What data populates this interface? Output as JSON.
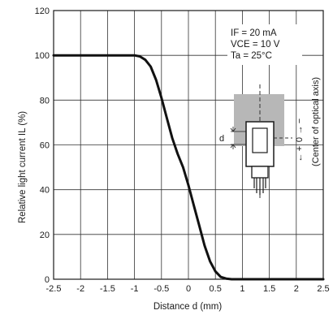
{
  "chart_data": {
    "type": "line",
    "xlabel": "Distance d (mm)",
    "ylabel": "Relative light current IL (%)",
    "xlim": [
      -2.5,
      2.5
    ],
    "ylim": [
      0,
      120
    ],
    "x_ticks": [
      "-2.5",
      "-2",
      "-1.5",
      "-1",
      "-0.5",
      "0",
      "0.5",
      "1",
      "1.5",
      "2",
      "2.5"
    ],
    "y_ticks": [
      "0",
      "20",
      "40",
      "60",
      "80",
      "100",
      "120"
    ],
    "grid": true,
    "conditions": [
      "IF = 20 mA",
      "VCE = 10 V",
      "Ta = 25°C"
    ],
    "series": [
      {
        "x": [
          -2.5,
          -2.0,
          -1.5,
          -1.0,
          -0.9,
          -0.8,
          -0.7,
          -0.6,
          -0.5,
          -0.4,
          -0.3,
          -0.2,
          -0.1,
          0.0,
          0.1,
          0.2,
          0.3,
          0.4,
          0.5,
          0.6,
          0.7,
          0.8,
          0.9,
          1.0,
          1.5,
          2.0,
          2.5
        ],
        "y": [
          100,
          100,
          100,
          100,
          99.5,
          98,
          95,
          89,
          81,
          72,
          63,
          56,
          50,
          42,
          33,
          24,
          15,
          8,
          3.5,
          1,
          0.3,
          0,
          0,
          0,
          0,
          0,
          0
        ],
        "color": "#111111"
      }
    ],
    "inset": {
      "dimension_label": "d",
      "zero_label": "0",
      "minus_sign": "−",
      "plus_sign": "+",
      "arrow_up": "→",
      "arrow_down": "←",
      "axis_note": "(Center of optical axis)"
    }
  }
}
